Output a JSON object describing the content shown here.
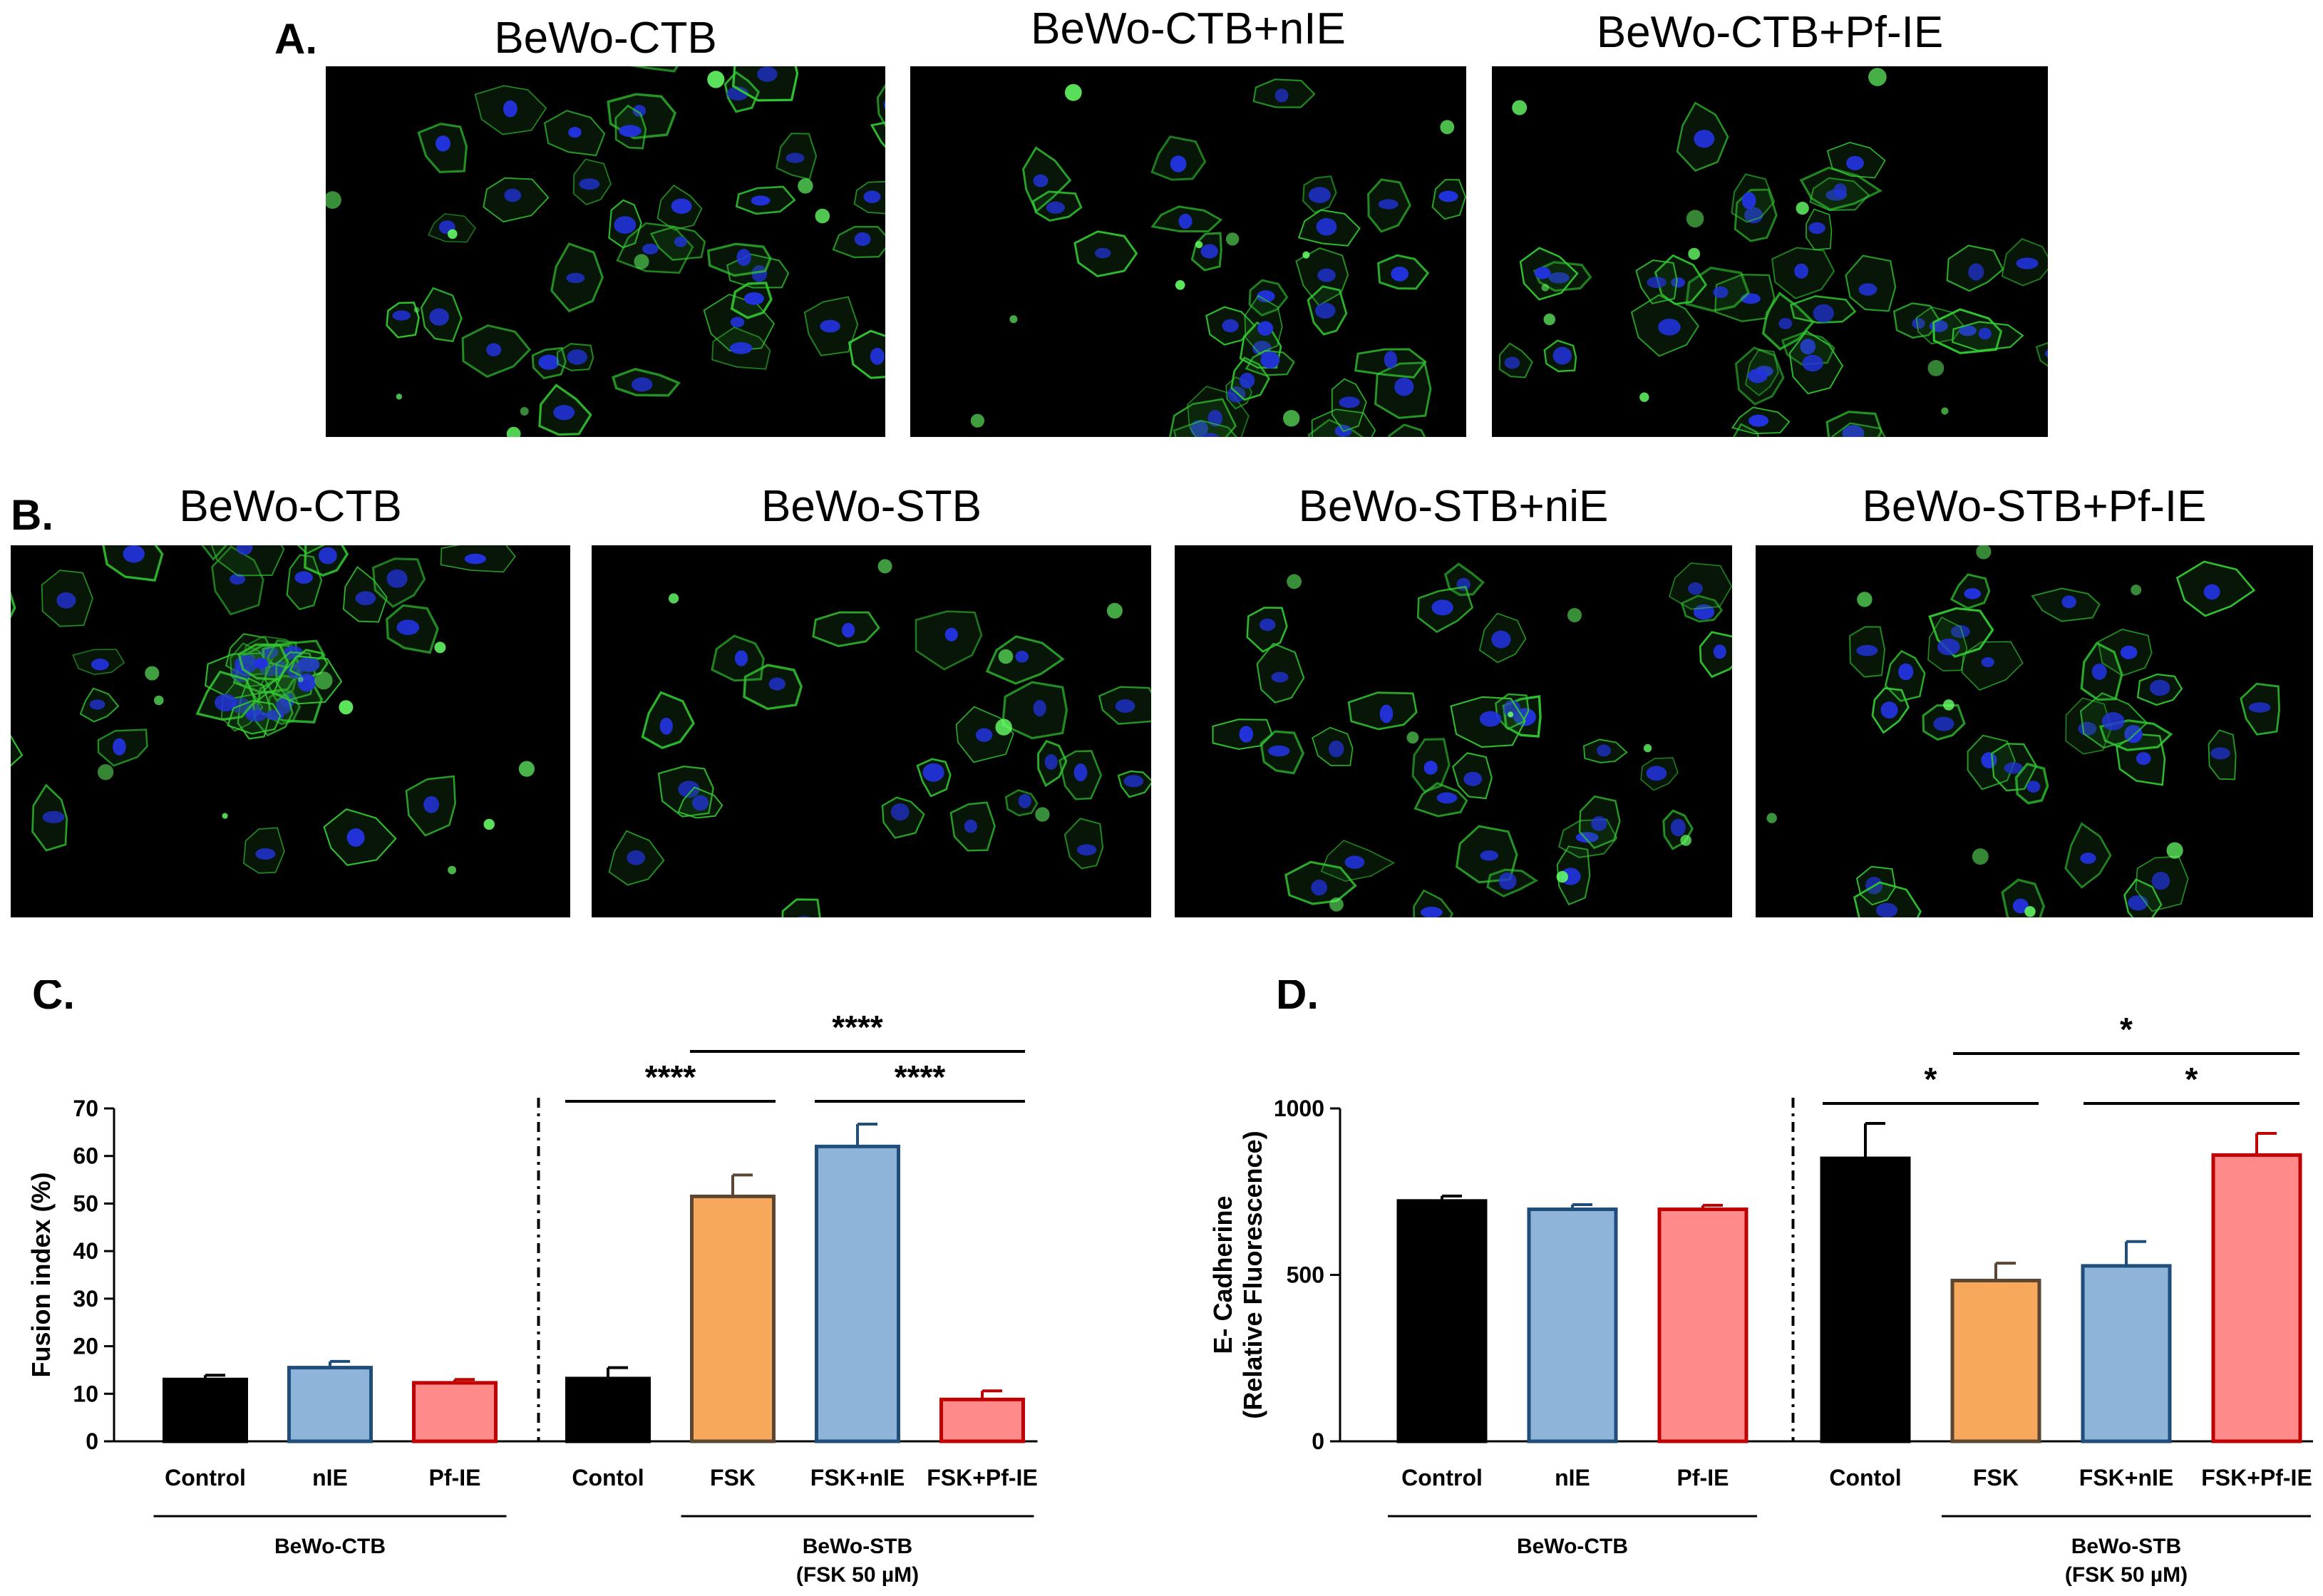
{
  "panel_a": {
    "letter": "A.",
    "images": [
      {
        "title": "BeWo-CTB"
      },
      {
        "title": "BeWo-CTB+nIE"
      },
      {
        "title": "BeWo-CTB+Pf-IE"
      }
    ]
  },
  "panel_b": {
    "letter": "B.",
    "images": [
      {
        "title": "BeWo-CTB"
      },
      {
        "title": "BeWo-STB"
      },
      {
        "title": "BeWo-STB+niE"
      },
      {
        "title": "BeWo-STB+Pf-IE"
      }
    ]
  },
  "colors": {
    "control": "#000000",
    "nie_fill": "#8fb4d9",
    "nie_edge": "#1f4e7a",
    "pfie_fill": "#ff8a8a",
    "pfie_edge": "#c00000",
    "fsk_fill": "#f7a85a",
    "fsk_edge": "#5a4632",
    "membrane": "#33cc33",
    "nucleus": "#2233dd"
  },
  "chart_data": [
    {
      "type": "bar",
      "letter": "C.",
      "ylabel": "Fusion index (%)",
      "ylim": [
        0,
        70
      ],
      "yticks": [
        0,
        10,
        20,
        30,
        40,
        50,
        60,
        70
      ],
      "categories": [
        "Control",
        "nIE",
        "Pf-IE",
        "Contol",
        "FSK",
        "FSK+nIE",
        "FSK+Pf-IE"
      ],
      "values": [
        13,
        15.5,
        12.3,
        13.2,
        51.5,
        62,
        8.8
      ],
      "errors": [
        0.9,
        1.3,
        0.7,
        2.3,
        4.5,
        4.7,
        1.8
      ],
      "groups": [
        {
          "label": "BeWo-CTB",
          "label2": "",
          "from": 0,
          "to": 2
        },
        {
          "label": "BeWo-STB",
          "label2": "(FSK 50 µM)",
          "from": 4,
          "to": 6
        }
      ],
      "significance": [
        {
          "from": 3,
          "to": 4,
          "label": "****",
          "y": 71.5
        },
        {
          "from": 4,
          "to": 6,
          "label": "****",
          "y": 82
        },
        {
          "from": 5,
          "to": 6,
          "label": "****",
          "y": 71.5
        }
      ]
    },
    {
      "type": "bar",
      "letter": "D.",
      "ylabel": "E- Cadherine",
      "ylabel2": "(Relative Fluorescence)",
      "ylim": [
        0,
        1000
      ],
      "yticks": [
        0,
        500,
        1000
      ],
      "categories": [
        "Control",
        "nIE",
        "Pf-IE",
        "Contol",
        "FSK",
        "FSK+nIE",
        "FSK+Pf-IE"
      ],
      "values": [
        722,
        697,
        697,
        850,
        483,
        527,
        860
      ],
      "errors": [
        15,
        14,
        12,
        105,
        52,
        73,
        65
      ],
      "groups": [
        {
          "label": "BeWo-CTB",
          "label2": "",
          "from": 0,
          "to": 2
        },
        {
          "label": "BeWo-STB",
          "label2": "(FSK 50 µM)",
          "from": 4,
          "to": 6
        }
      ],
      "significance": [
        {
          "from": 3,
          "to": 4,
          "label": "*",
          "y": 1015
        },
        {
          "from": 4,
          "to": 6,
          "label": "*",
          "y": 1165
        },
        {
          "from": 5,
          "to": 6,
          "label": "*",
          "y": 1015
        }
      ]
    }
  ]
}
